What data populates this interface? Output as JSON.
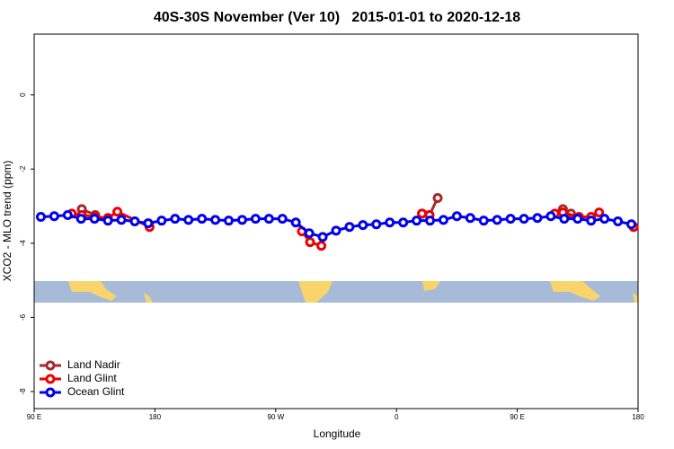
{
  "chart_data": {
    "type": "line",
    "title": "40S-30S November (Ver 10)   2015-01-01 to 2020-12-18",
    "x_label": "Longitude",
    "y_label": "XCO2 - MLO trend (ppm)",
    "xlim": [
      90,
      540
    ],
    "ylim": [
      -8.46,
      1.64
    ],
    "xticks": [
      {
        "value": 90,
        "label": "90 E"
      },
      {
        "value": 180,
        "label": "180"
      },
      {
        "value": 270,
        "label": "90 W"
      },
      {
        "value": 360,
        "label": "0"
      },
      {
        "value": 450,
        "label": "90 E"
      },
      {
        "value": 540,
        "label": "180"
      }
    ],
    "yticks": [
      0,
      -2,
      -4,
      -6,
      -8
    ],
    "legend": "bottom-left",
    "series": [
      {
        "name": "Land Nadir",
        "color": "#a52a2a",
        "x": [
          125.5,
          135.5,
          null,
          379,
          384.6,
          390.7,
          null,
          484,
          490
        ],
        "values": [
          -3.08,
          -3.24,
          null,
          -3.2,
          -3.24,
          -2.78,
          null,
          -3.08,
          -3.2
        ]
      },
      {
        "name": "Land Glint",
        "color": "#ee0000",
        "x": [
          118,
          125.5,
          135.5,
          145,
          152,
          176,
          null,
          289.5,
          295.6,
          304,
          null,
          379,
          384.6,
          null,
          478,
          484,
          496,
          505,
          511,
          null,
          536.7
        ],
        "values": [
          -3.2,
          -3.24,
          -3.29,
          -3.32,
          -3.15,
          -3.56,
          null,
          -3.68,
          -3.97,
          -4.07,
          null,
          -3.2,
          -3.24,
          null,
          -3.2,
          -3.17,
          -3.29,
          -3.29,
          -3.17,
          null,
          -3.56
        ]
      },
      {
        "name": "Ocean Glint",
        "color": "#0000ee",
        "x": [
          95,
          105,
          115,
          125,
          135,
          145,
          155,
          165,
          175,
          185,
          195,
          205,
          215,
          225,
          235,
          245,
          255,
          265,
          275,
          285,
          295,
          305,
          315,
          325,
          335,
          345,
          355,
          365,
          375,
          385,
          395,
          405,
          415,
          425,
          435,
          445,
          455,
          465,
          475,
          485,
          495,
          505,
          515,
          525,
          535
        ],
        "values": [
          -3.29,
          -3.27,
          -3.24,
          -3.34,
          -3.34,
          -3.39,
          -3.37,
          -3.41,
          -3.46,
          -3.39,
          -3.34,
          -3.37,
          -3.34,
          -3.37,
          -3.39,
          -3.37,
          -3.34,
          -3.34,
          -3.34,
          -3.44,
          -3.73,
          -3.83,
          -3.66,
          -3.56,
          -3.51,
          -3.49,
          -3.44,
          -3.44,
          -3.39,
          -3.39,
          -3.37,
          -3.27,
          -3.32,
          -3.39,
          -3.37,
          -3.34,
          -3.34,
          -3.32,
          -3.27,
          -3.34,
          -3.34,
          -3.39,
          -3.34,
          -3.41,
          -3.49
        ]
      }
    ]
  }
}
